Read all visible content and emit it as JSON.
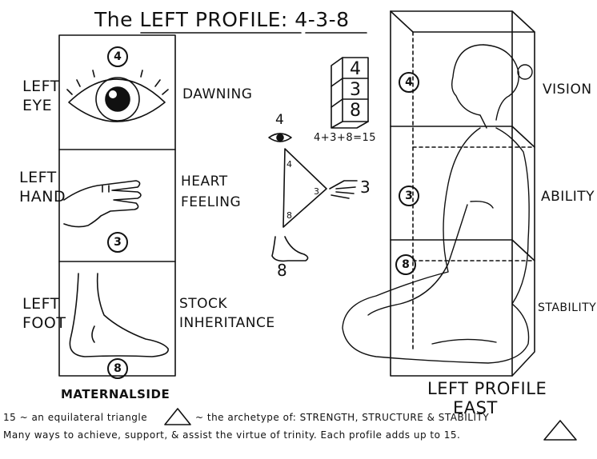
{
  "title": "The LEFT PROFILE: 4-3-8",
  "panels": [
    {
      "label": "LEFT\nEYE",
      "number": "4",
      "word": "DAWNING"
    },
    {
      "label": "LEFT\nHAND",
      "number": "3",
      "word": "HEART\nFEELING"
    },
    {
      "label": "LEFT\nFOOT",
      "number": "8",
      "word": "STOCK\nINHERITANCE"
    }
  ],
  "stack": [
    "4",
    "3",
    "8"
  ],
  "triangle": {
    "top": "4",
    "right": "3",
    "bottom": "8",
    "inner_top": "4",
    "inner_right": "3",
    "inner_bottom": "8",
    "equation": "4+3+8=15"
  },
  "figure": {
    "levels": [
      {
        "number": "4",
        "word": "VISION"
      },
      {
        "number": "3",
        "word": "ABILITY"
      },
      {
        "number": "8",
        "word": "STABILITY"
      }
    ],
    "caption_line1": "LEFT PROFILE",
    "caption_line2": "EAST"
  },
  "side_label": "MATERNALSIDE",
  "footer": {
    "line1_prefix": "15 ~ an equilateral triangle",
    "line1_suffix": "~ the archetype of: STRENGTH, STRUCTURE & STABILITY",
    "line2": "Many ways to achieve, support, & assist the virtue of trinity. Each profile adds up to 15."
  }
}
